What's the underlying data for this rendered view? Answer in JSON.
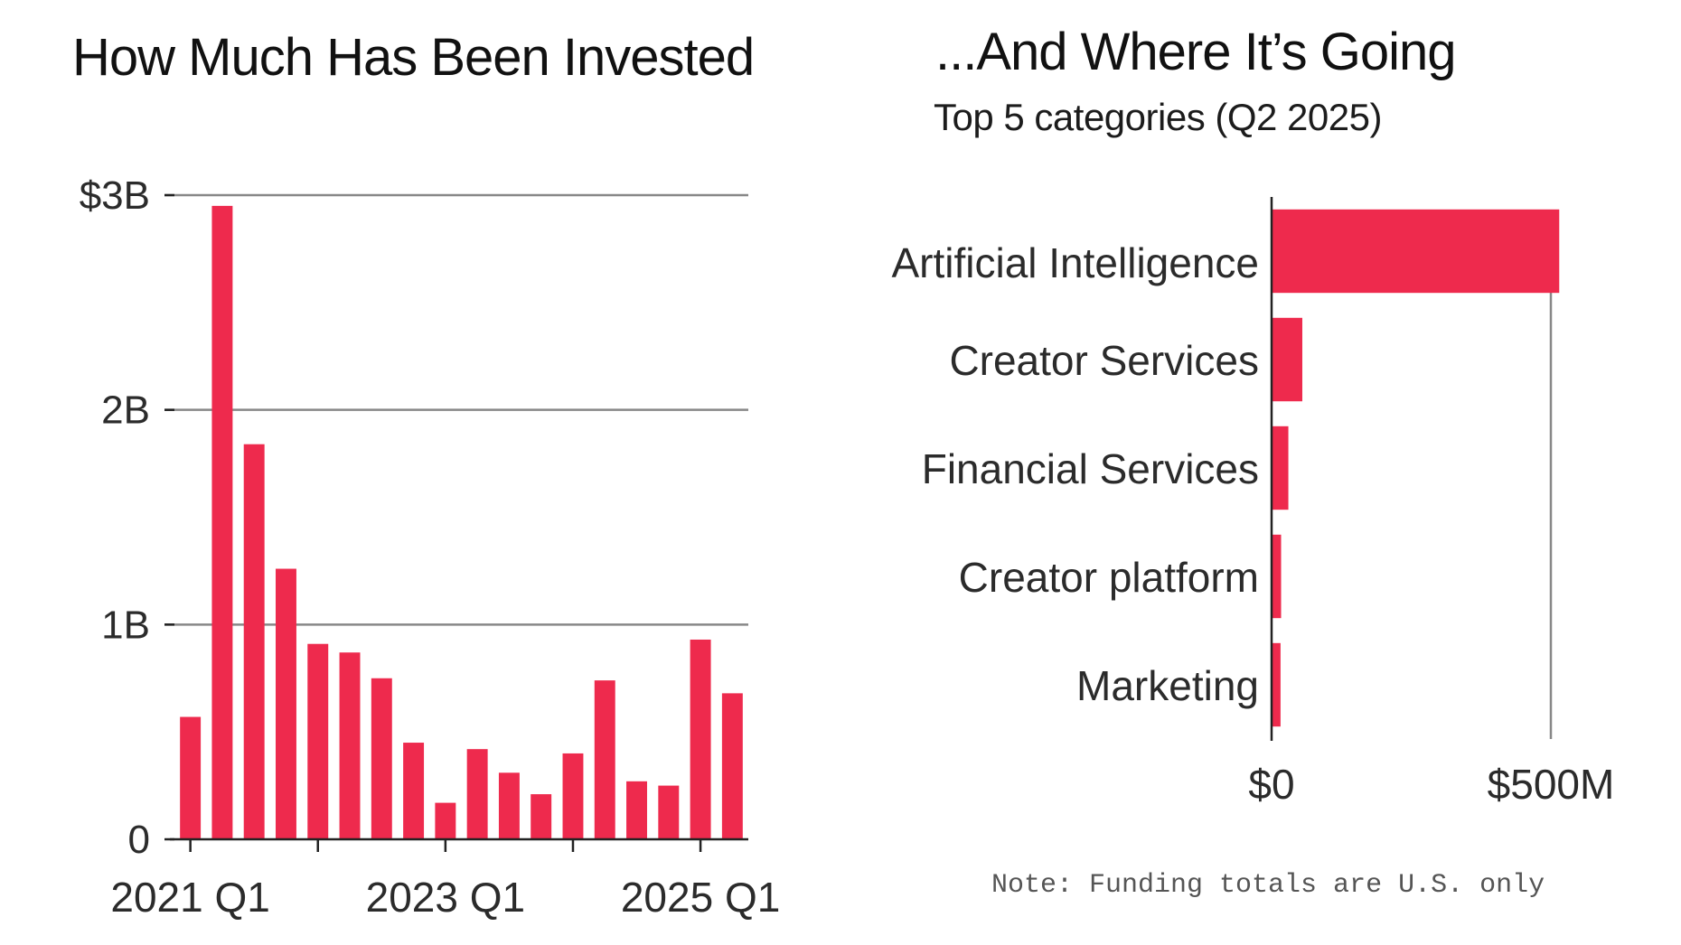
{
  "colors": {
    "bar": "#ee2a4d",
    "grid": "#888888",
    "axis": "#222222",
    "text": "#2b2b2b"
  },
  "left_title": "How Much Has Been Invested",
  "right_title": "...And Where It’s Going",
  "right_subtitle": "Top 5 categories (Q2 2025)",
  "note": "Note: Funding totals are U.S. only",
  "chart_data": [
    {
      "type": "bar",
      "title": "How Much Has Been Invested",
      "xlabel": "",
      "ylabel": "",
      "categories": [
        "2021 Q1",
        "2021 Q2",
        "2021 Q3",
        "2021 Q4",
        "2022 Q1",
        "2022 Q2",
        "2022 Q3",
        "2022 Q4",
        "2023 Q1",
        "2023 Q2",
        "2023 Q3",
        "2023 Q4",
        "2024 Q1",
        "2024 Q2",
        "2024 Q3",
        "2024 Q4",
        "2025 Q1",
        "2025 Q2"
      ],
      "values": [
        0.57,
        2.95,
        1.84,
        1.26,
        0.91,
        0.87,
        0.75,
        0.45,
        0.17,
        0.42,
        0.31,
        0.21,
        0.4,
        0.74,
        0.27,
        0.25,
        0.93,
        0.68
      ],
      "value_unit": "B",
      "ylim": [
        0,
        3
      ],
      "yticks": [
        0,
        1,
        2,
        3
      ],
      "ytick_labels": [
        "0",
        "1B",
        "2B",
        "$3B"
      ],
      "xtick_labels": [
        "2021 Q1",
        "2023 Q1",
        "2025 Q1"
      ],
      "xtick_positions": [
        "2021 Q1",
        "2023 Q1",
        "2025 Q1"
      ],
      "minor_xtick_positions": [
        "2022 Q1",
        "2024 Q1"
      ],
      "grid": true
    },
    {
      "type": "bar",
      "orientation": "horizontal",
      "title": "...And Where It’s Going",
      "subtitle": "Top 5 categories (Q2 2025)",
      "categories": [
        "Artificial Intelligence",
        "Creator Services",
        "Financial Services",
        "Creator platform",
        "Marketing"
      ],
      "values": [
        515,
        55,
        30,
        17,
        16
      ],
      "value_unit": "M",
      "xlim": [
        0,
        500
      ],
      "xticks": [
        0,
        500
      ],
      "xtick_labels": [
        "$0",
        "$500M"
      ],
      "grid": true
    }
  ]
}
